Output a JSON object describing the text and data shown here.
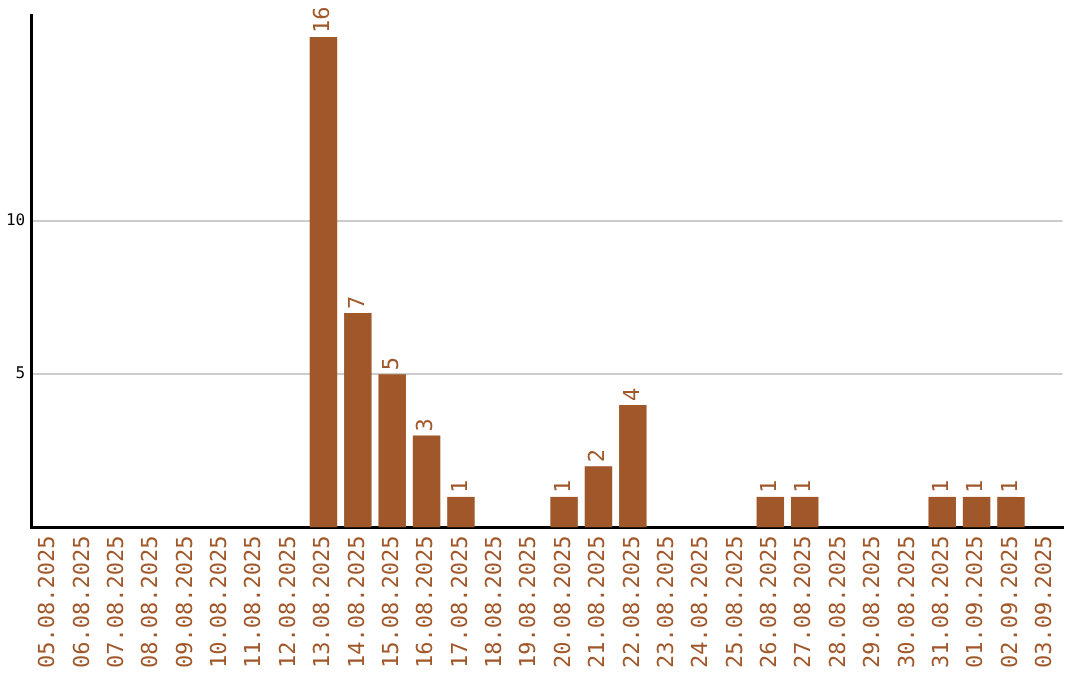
{
  "chart_data": {
    "type": "bar",
    "categories": [
      "05.08.2025",
      "06.08.2025",
      "07.08.2025",
      "08.08.2025",
      "09.08.2025",
      "10.08.2025",
      "11.08.2025",
      "12.08.2025",
      "13.08.2025",
      "14.08.2025",
      "15.08.2025",
      "16.08.2025",
      "17.08.2025",
      "18.08.2025",
      "19.08.2025",
      "20.08.2025",
      "21.08.2025",
      "22.08.2025",
      "23.08.2025",
      "24.08.2025",
      "25.08.2025",
      "26.08.2025",
      "27.08.2025",
      "28.08.2025",
      "29.08.2025",
      "30.08.2025",
      "31.08.2025",
      "01.09.2025",
      "02.09.2025",
      "03.09.2025"
    ],
    "values": [
      0,
      0,
      0,
      0,
      0,
      0,
      0,
      0,
      16,
      7,
      5,
      3,
      1,
      0,
      0,
      1,
      2,
      4,
      0,
      0,
      0,
      1,
      1,
      0,
      0,
      0,
      1,
      1,
      1,
      0
    ],
    "value_labels": [
      null,
      null,
      null,
      null,
      null,
      null,
      null,
      null,
      "16",
      "7",
      "5",
      "3",
      "1",
      null,
      null,
      "1",
      "2",
      "4",
      null,
      null,
      null,
      "1",
      "1",
      null,
      null,
      null,
      "1",
      "1",
      "1",
      null
    ],
    "color": "#a0572a",
    "ylim": [
      0,
      16.7
    ],
    "yticks": [
      5,
      10
    ],
    "grid": "y",
    "legend": false
  }
}
